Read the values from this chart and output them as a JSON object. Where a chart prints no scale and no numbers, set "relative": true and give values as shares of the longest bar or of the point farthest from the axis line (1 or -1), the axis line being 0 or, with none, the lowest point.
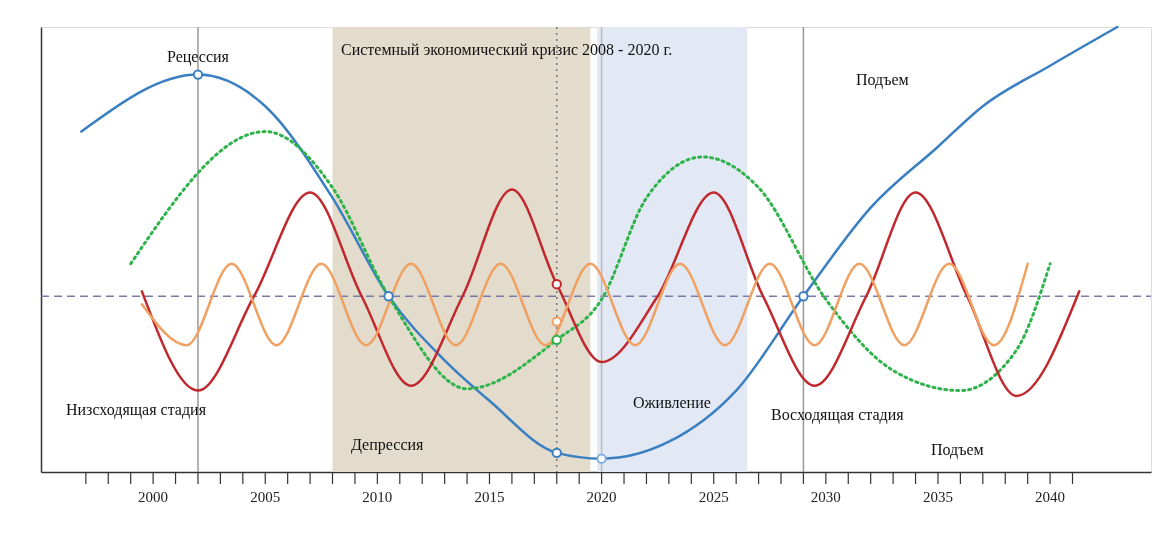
{
  "chart_data": {
    "type": "line",
    "relative": true,
    "xlim": [
      1995,
      2044.5
    ],
    "xticks": [
      {
        "value": 1997,
        "label": null
      },
      {
        "value": 1998,
        "label": null
      },
      {
        "value": 1999,
        "label": null
      },
      2000,
      {
        "value": 2001,
        "label": null
      },
      {
        "value": 2002,
        "label": null
      },
      {
        "value": 2003,
        "label": null
      },
      {
        "value": 2004,
        "label": null
      },
      2005,
      {
        "value": 2006,
        "label": null
      },
      {
        "value": 2007,
        "label": null
      },
      {
        "value": 2008,
        "label": null
      },
      {
        "value": 2009,
        "label": null
      },
      2010,
      {
        "value": 2011,
        "label": null
      },
      {
        "value": 2012,
        "label": null
      },
      {
        "value": 2013,
        "label": null
      },
      {
        "value": 2014,
        "label": null
      },
      2015,
      {
        "value": 2016,
        "label": null
      },
      {
        "value": 2017,
        "label": null
      },
      {
        "value": 2018,
        "label": null
      },
      {
        "value": 2019,
        "label": null
      },
      2020,
      {
        "value": 2021,
        "label": null
      },
      {
        "value": 2022,
        "label": null
      },
      {
        "value": 2023,
        "label": null
      },
      {
        "value": 2024,
        "label": null
      },
      2025,
      {
        "value": 2026,
        "label": null
      },
      {
        "value": 2027,
        "label": null
      },
      {
        "value": 2028,
        "label": null
      },
      {
        "value": 2029,
        "label": null
      },
      2030,
      {
        "value": 2031,
        "label": null
      },
      {
        "value": 2032,
        "label": null
      },
      {
        "value": 2033,
        "label": null
      },
      {
        "value": 2034,
        "label": null
      },
      2035,
      {
        "value": 2036,
        "label": null
      },
      {
        "value": 2037,
        "label": null
      },
      {
        "value": 2038,
        "label": null
      },
      {
        "value": 2039,
        "label": null
      },
      2040,
      {
        "value": 2041,
        "label": null
      }
    ],
    "grid": false,
    "tick_labels": "x",
    "marker": "none",
    "series": [
      {
        "color": "#3a7fc1",
        "line_style": "solid",
        "x": [
          1996.8,
          2002,
          2005,
          2008,
          2010.5,
          2013,
          2015,
          2018,
          2020,
          2023,
          2026,
          2029,
          2032,
          2035,
          2037,
          2040,
          2043
        ],
        "values": [
          0.765,
          0.893,
          0.822,
          0.616,
          0.395,
          0.251,
          0.16,
          0.043,
          0.03,
          0.068,
          0.183,
          0.395,
          0.594,
          0.731,
          0.822,
          0.913,
          1.0
        ]
      },
      {
        "color": "#2db34a",
        "line_style": "dotted",
        "x": [
          1999,
          2005,
          2008,
          2010.5,
          2014,
          2018,
          2020,
          2022,
          2024.5,
          2027,
          2030,
          2033,
          2036,
          2038.5,
          2040
        ],
        "values": [
          0.468,
          0.765,
          0.639,
          0.395,
          0.187,
          0.297,
          0.388,
          0.616,
          0.708,
          0.639,
          0.388,
          0.228,
          0.183,
          0.274,
          0.468
        ]
      },
      {
        "color": "#c0282d",
        "line_style": "solid",
        "x": [
          1999.5,
          2002,
          2004.5,
          2007,
          2009.3,
          2011.5,
          2013.8,
          2016,
          2018,
          2020,
          2022.5,
          2025,
          2027.2,
          2029.5,
          2031.8,
          2034,
          2036.3,
          2038.5,
          2041.3
        ],
        "values": [
          0.406,
          0.183,
          0.395,
          0.628,
          0.395,
          0.194,
          0.395,
          0.635,
          0.422,
          0.247,
          0.395,
          0.628,
          0.395,
          0.194,
          0.395,
          0.628,
          0.395,
          0.171,
          0.406
        ]
      },
      {
        "color": "#f0a060",
        "line_style": "solid",
        "x": [
          1999.5,
          2001.5,
          2003.5,
          2005.5,
          2007.5,
          2009.5,
          2011.5,
          2013.5,
          2015.5,
          2017.5,
          2019.5,
          2021.5,
          2023.5,
          2025.5,
          2027.5,
          2029.5,
          2031.5,
          2033.5,
          2035.5,
          2037.5,
          2039
        ],
        "values": [
          0.377,
          0.285,
          0.468,
          0.285,
          0.468,
          0.285,
          0.468,
          0.285,
          0.468,
          0.285,
          0.468,
          0.285,
          0.468,
          0.285,
          0.468,
          0.285,
          0.468,
          0.285,
          0.468,
          0.285,
          0.468
        ]
      },
      {
        "type": "scatter",
        "marker": "circle",
        "x": [
          2002,
          2010.5,
          2018,
          2020,
          2029,
          2018,
          2018,
          2018
        ],
        "values": [
          0.893,
          0.395,
          0.043,
          0.03,
          0.395,
          0.422,
          0.338,
          0.297
        ],
        "colors": [
          "#3a7fc1",
          "#3a7fc1",
          "#3a7fc1",
          "#7fb0dd",
          "#3a7fc1",
          "#c0282d",
          "#f0a060",
          "#2db34a"
        ]
      }
    ],
    "ref_lines": [
      {
        "axis": "y",
        "value": 0.395,
        "color": "#7a7aa8",
        "line_style": "dashed"
      },
      {
        "axis": "x",
        "value": 2002,
        "color": "#999999",
        "line_style": "solid"
      },
      {
        "axis": "x",
        "value": 2018,
        "color": "#777777",
        "line_style": "dotted"
      },
      {
        "axis": "x",
        "value": 2020,
        "color": "#bbbbbb",
        "line_style": "solid"
      },
      {
        "axis": "x",
        "value": 2029,
        "color": "#999999",
        "line_style": "solid"
      }
    ],
    "bands": [
      {
        "axis": "x",
        "from": 2008,
        "to": 2019.5,
        "color": "#e3dccd"
      },
      {
        "axis": "x",
        "from": 2019.8,
        "to": 2026.5,
        "color": "#e2e9f4"
      }
    ],
    "annotations": [
      {
        "text": "Рецессия",
        "x": 2002,
        "y": 0.893
      },
      "Системный экономический кризис 2008 - 2020 г.",
      "Подъем",
      "Низсходящая стадия",
      "Депрессия",
      "Оживление",
      "Восходящая стадия",
      "Подъем"
    ]
  }
}
